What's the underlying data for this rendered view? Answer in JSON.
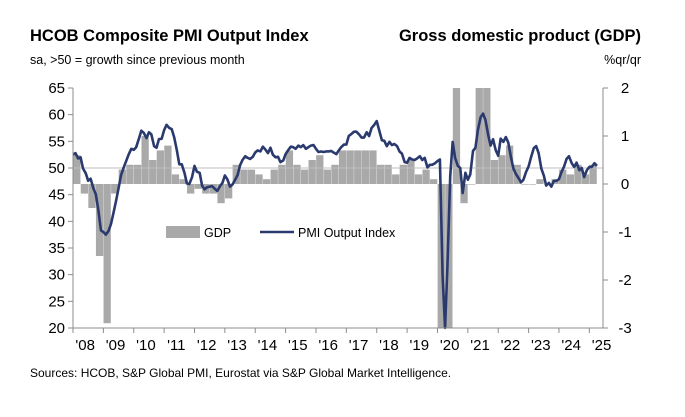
{
  "chart_data": {
    "type": "bar+line",
    "title": "HCOB Composite PMI Output Index",
    "subtitle": "sa, >50 = growth since previous month",
    "title_right": "Gross domestic product (GDP)",
    "subtitle_right": "%qr/qr",
    "source": "Sources: HCOB, S&P Global PMI, Eurostat via S&P Global Market Intelligence.",
    "x_tick_labels": [
      "'08",
      "'09",
      "'10",
      "'11",
      "'12",
      "'13",
      "'14",
      "'15",
      "'16",
      "'17",
      "'18",
      "'19",
      "'20",
      "'21",
      "'22",
      "'23",
      "'24",
      "'25"
    ],
    "x_range": [
      2008.0,
      2025.45
    ],
    "y_left": {
      "ticks": [
        65,
        60,
        55,
        50,
        45,
        40,
        35,
        30,
        25,
        20
      ],
      "range": [
        20,
        65
      ]
    },
    "y_right": {
      "ticks": [
        2,
        1,
        0,
        -1,
        -2,
        -3
      ],
      "range": [
        -3,
        2
      ]
    },
    "reference_line_left": 50,
    "legend": {
      "position": "center-left",
      "items": [
        "GDP",
        "PMI Output Index"
      ]
    },
    "colors": {
      "gdp_bars": "#a9a9a9",
      "pmi_line": "#2b3a6e",
      "axis": "#8c8c8c"
    },
    "series": [
      {
        "name": "GDP",
        "axis": "right",
        "kind": "bar",
        "points": [
          {
            "t": 2008.125,
            "v": 0.6
          },
          {
            "t": 2008.375,
            "v": -0.2
          },
          {
            "t": 2008.625,
            "v": -0.5
          },
          {
            "t": 2008.875,
            "v": -1.5
          },
          {
            "t": 2009.125,
            "v": -2.9
          },
          {
            "t": 2009.375,
            "v": -0.2
          },
          {
            "t": 2009.625,
            "v": 0.3
          },
          {
            "t": 2009.875,
            "v": 0.4
          },
          {
            "t": 2010.125,
            "v": 0.4
          },
          {
            "t": 2010.375,
            "v": 1.0
          },
          {
            "t": 2010.625,
            "v": 0.5
          },
          {
            "t": 2010.875,
            "v": 0.7
          },
          {
            "t": 2011.125,
            "v": 0.8
          },
          {
            "t": 2011.375,
            "v": 0.2
          },
          {
            "t": 2011.625,
            "v": 0.1
          },
          {
            "t": 2011.875,
            "v": -0.2
          },
          {
            "t": 2012.125,
            "v": -0.1
          },
          {
            "t": 2012.375,
            "v": -0.2
          },
          {
            "t": 2012.625,
            "v": -0.2
          },
          {
            "t": 2012.875,
            "v": -0.4
          },
          {
            "t": 2013.125,
            "v": -0.3
          },
          {
            "t": 2013.375,
            "v": 0.4
          },
          {
            "t": 2013.625,
            "v": 0.3
          },
          {
            "t": 2013.875,
            "v": 0.3
          },
          {
            "t": 2014.125,
            "v": 0.2
          },
          {
            "t": 2014.375,
            "v": 0.1
          },
          {
            "t": 2014.625,
            "v": 0.3
          },
          {
            "t": 2014.875,
            "v": 0.4
          },
          {
            "t": 2015.125,
            "v": 0.7
          },
          {
            "t": 2015.375,
            "v": 0.4
          },
          {
            "t": 2015.625,
            "v": 0.3
          },
          {
            "t": 2015.875,
            "v": 0.5
          },
          {
            "t": 2016.125,
            "v": 0.6
          },
          {
            "t": 2016.375,
            "v": 0.3
          },
          {
            "t": 2016.625,
            "v": 0.4
          },
          {
            "t": 2016.875,
            "v": 0.7
          },
          {
            "t": 2017.125,
            "v": 0.7
          },
          {
            "t": 2017.375,
            "v": 0.7
          },
          {
            "t": 2017.625,
            "v": 0.7
          },
          {
            "t": 2017.875,
            "v": 0.7
          },
          {
            "t": 2018.125,
            "v": 0.4
          },
          {
            "t": 2018.375,
            "v": 0.4
          },
          {
            "t": 2018.625,
            "v": 0.2
          },
          {
            "t": 2018.875,
            "v": 0.4
          },
          {
            "t": 2019.125,
            "v": 0.5
          },
          {
            "t": 2019.375,
            "v": 0.2
          },
          {
            "t": 2019.625,
            "v": 0.3
          },
          {
            "t": 2019.875,
            "v": 0.1
          },
          {
            "t": 2020.125,
            "v": -3.5
          },
          {
            "t": 2020.375,
            "v": -11.6
          },
          {
            "t": 2020.625,
            "v": 12.6
          },
          {
            "t": 2020.875,
            "v": -0.4
          },
          {
            "t": 2021.125,
            "v": 0.0
          },
          {
            "t": 2021.375,
            "v": 2.2
          },
          {
            "t": 2021.625,
            "v": 2.2
          },
          {
            "t": 2021.875,
            "v": 0.5
          },
          {
            "t": 2022.125,
            "v": 0.6
          },
          {
            "t": 2022.375,
            "v": 0.8
          },
          {
            "t": 2022.625,
            "v": 0.4
          },
          {
            "t": 2022.875,
            "v": 0.0
          },
          {
            "t": 2023.125,
            "v": 0.0
          },
          {
            "t": 2023.375,
            "v": 0.1
          },
          {
            "t": 2023.625,
            "v": 0.0
          },
          {
            "t": 2023.875,
            "v": 0.1
          },
          {
            "t": 2024.125,
            "v": 0.3
          },
          {
            "t": 2024.375,
            "v": 0.2
          },
          {
            "t": 2024.625,
            "v": 0.4
          },
          {
            "t": 2024.875,
            "v": 0.2
          },
          {
            "t": 2025.125,
            "v": 0.4
          }
        ]
      },
      {
        "name": "PMI Output Index",
        "axis": "left",
        "kind": "line",
        "points": [
          [
            2008.0,
            52.5
          ],
          [
            2008.08,
            52.8
          ],
          [
            2008.17,
            51.8
          ],
          [
            2008.25,
            52.0
          ],
          [
            2008.33,
            49.9
          ],
          [
            2008.42,
            49.0
          ],
          [
            2008.5,
            47.6
          ],
          [
            2008.58,
            48.0
          ],
          [
            2008.67,
            46.2
          ],
          [
            2008.75,
            45.1
          ],
          [
            2008.83,
            42.3
          ],
          [
            2008.92,
            38.3
          ],
          [
            2009.0,
            38.0
          ],
          [
            2009.08,
            37.5
          ],
          [
            2009.17,
            38.2
          ],
          [
            2009.25,
            39.5
          ],
          [
            2009.33,
            41.5
          ],
          [
            2009.42,
            43.9
          ],
          [
            2009.5,
            46.2
          ],
          [
            2009.58,
            48.6
          ],
          [
            2009.67,
            50.1
          ],
          [
            2009.75,
            51.3
          ],
          [
            2009.83,
            52.5
          ],
          [
            2009.92,
            53.6
          ],
          [
            2010.0,
            53.4
          ],
          [
            2010.08,
            53.9
          ],
          [
            2010.17,
            55.5
          ],
          [
            2010.25,
            57.0
          ],
          [
            2010.33,
            56.6
          ],
          [
            2010.42,
            55.6
          ],
          [
            2010.5,
            56.7
          ],
          [
            2010.58,
            56.3
          ],
          [
            2010.67,
            54.1
          ],
          [
            2010.75,
            53.8
          ],
          [
            2010.83,
            55.4
          ],
          [
            2010.92,
            55.5
          ],
          [
            2011.0,
            57.1
          ],
          [
            2011.08,
            58.1
          ],
          [
            2011.17,
            57.5
          ],
          [
            2011.25,
            57.3
          ],
          [
            2011.33,
            55.8
          ],
          [
            2011.42,
            53.3
          ],
          [
            2011.5,
            50.7
          ],
          [
            2011.58,
            50.7
          ],
          [
            2011.67,
            49.1
          ],
          [
            2011.75,
            47.1
          ],
          [
            2011.83,
            47.0
          ],
          [
            2011.92,
            48.3
          ],
          [
            2012.0,
            50.4
          ],
          [
            2012.08,
            49.3
          ],
          [
            2012.17,
            49.1
          ],
          [
            2012.25,
            46.7
          ],
          [
            2012.33,
            46.0
          ],
          [
            2012.42,
            46.4
          ],
          [
            2012.5,
            46.5
          ],
          [
            2012.58,
            46.6
          ],
          [
            2012.67,
            46.1
          ],
          [
            2012.75,
            45.7
          ],
          [
            2012.83,
            46.5
          ],
          [
            2012.92,
            47.2
          ],
          [
            2013.0,
            48.6
          ],
          [
            2013.08,
            47.9
          ],
          [
            2013.17,
            46.5
          ],
          [
            2013.25,
            46.9
          ],
          [
            2013.33,
            47.7
          ],
          [
            2013.42,
            48.7
          ],
          [
            2013.5,
            50.5
          ],
          [
            2013.58,
            51.5
          ],
          [
            2013.67,
            52.2
          ],
          [
            2013.75,
            51.9
          ],
          [
            2013.83,
            51.7
          ],
          [
            2013.92,
            52.1
          ],
          [
            2014.0,
            52.9
          ],
          [
            2014.08,
            53.3
          ],
          [
            2014.17,
            53.1
          ],
          [
            2014.25,
            54.0
          ],
          [
            2014.33,
            53.5
          ],
          [
            2014.42,
            52.8
          ],
          [
            2014.5,
            53.8
          ],
          [
            2014.58,
            52.5
          ],
          [
            2014.67,
            52.0
          ],
          [
            2014.75,
            52.1
          ],
          [
            2014.83,
            51.1
          ],
          [
            2014.92,
            51.4
          ],
          [
            2015.0,
            52.6
          ],
          [
            2015.08,
            53.3
          ],
          [
            2015.17,
            54.0
          ],
          [
            2015.25,
            53.9
          ],
          [
            2015.33,
            53.6
          ],
          [
            2015.42,
            54.2
          ],
          [
            2015.5,
            53.9
          ],
          [
            2015.58,
            54.3
          ],
          [
            2015.67,
            53.6
          ],
          [
            2015.75,
            53.9
          ],
          [
            2015.83,
            54.2
          ],
          [
            2015.92,
            54.3
          ],
          [
            2016.0,
            53.6
          ],
          [
            2016.08,
            53.0
          ],
          [
            2016.17,
            53.1
          ],
          [
            2016.25,
            53.0
          ],
          [
            2016.33,
            53.1
          ],
          [
            2016.42,
            53.1
          ],
          [
            2016.5,
            53.2
          ],
          [
            2016.58,
            52.9
          ],
          [
            2016.67,
            52.6
          ],
          [
            2016.75,
            53.3
          ],
          [
            2016.83,
            53.9
          ],
          [
            2016.92,
            54.4
          ],
          [
            2017.0,
            54.4
          ],
          [
            2017.08,
            56.0
          ],
          [
            2017.17,
            56.4
          ],
          [
            2017.25,
            56.8
          ],
          [
            2017.33,
            56.8
          ],
          [
            2017.42,
            56.3
          ],
          [
            2017.5,
            55.7
          ],
          [
            2017.58,
            55.7
          ],
          [
            2017.67,
            56.7
          ],
          [
            2017.75,
            56.0
          ],
          [
            2017.83,
            57.5
          ],
          [
            2017.92,
            58.1
          ],
          [
            2018.0,
            58.8
          ],
          [
            2018.08,
            57.1
          ],
          [
            2018.17,
            55.2
          ],
          [
            2018.25,
            55.1
          ],
          [
            2018.33,
            54.1
          ],
          [
            2018.42,
            54.9
          ],
          [
            2018.5,
            54.3
          ],
          [
            2018.58,
            54.5
          ],
          [
            2018.67,
            54.1
          ],
          [
            2018.75,
            53.1
          ],
          [
            2018.83,
            52.7
          ],
          [
            2018.92,
            51.1
          ],
          [
            2019.0,
            51.0
          ],
          [
            2019.08,
            51.9
          ],
          [
            2019.17,
            51.6
          ],
          [
            2019.25,
            51.5
          ],
          [
            2019.33,
            51.8
          ],
          [
            2019.42,
            52.2
          ],
          [
            2019.5,
            51.5
          ],
          [
            2019.58,
            51.9
          ],
          [
            2019.67,
            50.1
          ],
          [
            2019.75,
            50.6
          ],
          [
            2019.83,
            50.6
          ],
          [
            2019.92,
            50.9
          ],
          [
            2020.0,
            51.3
          ],
          [
            2020.08,
            51.6
          ],
          [
            2020.17,
            29.7
          ],
          [
            2020.25,
            13.6
          ],
          [
            2020.33,
            31.9
          ],
          [
            2020.42,
            48.5
          ],
          [
            2020.5,
            54.9
          ],
          [
            2020.58,
            51.9
          ],
          [
            2020.67,
            50.4
          ],
          [
            2020.75,
            50.0
          ],
          [
            2020.83,
            45.3
          ],
          [
            2020.92,
            49.1
          ],
          [
            2021.0,
            47.8
          ],
          [
            2021.08,
            48.8
          ],
          [
            2021.17,
            53.2
          ],
          [
            2021.25,
            53.8
          ],
          [
            2021.33,
            57.1
          ],
          [
            2021.42,
            59.5
          ],
          [
            2021.5,
            60.2
          ],
          [
            2021.58,
            59.0
          ],
          [
            2021.67,
            56.2
          ],
          [
            2021.75,
            54.2
          ],
          [
            2021.83,
            55.4
          ],
          [
            2021.92,
            53.3
          ],
          [
            2022.0,
            52.3
          ],
          [
            2022.08,
            55.5
          ],
          [
            2022.17,
            54.9
          ],
          [
            2022.25,
            55.8
          ],
          [
            2022.33,
            54.8
          ],
          [
            2022.42,
            52.0
          ],
          [
            2022.5,
            49.9
          ],
          [
            2022.58,
            48.9
          ],
          [
            2022.67,
            48.1
          ],
          [
            2022.75,
            47.3
          ],
          [
            2022.83,
            47.8
          ],
          [
            2022.92,
            49.3
          ],
          [
            2023.0,
            50.3
          ],
          [
            2023.08,
            52.0
          ],
          [
            2023.17,
            53.7
          ],
          [
            2023.25,
            54.1
          ],
          [
            2023.33,
            52.8
          ],
          [
            2023.42,
            49.9
          ],
          [
            2023.5,
            48.6
          ],
          [
            2023.58,
            46.7
          ],
          [
            2023.67,
            47.2
          ],
          [
            2023.75,
            46.5
          ],
          [
            2023.83,
            47.6
          ],
          [
            2023.92,
            47.6
          ],
          [
            2024.0,
            47.9
          ],
          [
            2024.08,
            49.2
          ],
          [
            2024.17,
            50.3
          ],
          [
            2024.25,
            51.7
          ],
          [
            2024.33,
            52.2
          ],
          [
            2024.42,
            50.9
          ],
          [
            2024.5,
            50.2
          ],
          [
            2024.58,
            51.0
          ],
          [
            2024.67,
            49.6
          ],
          [
            2024.75,
            50.0
          ],
          [
            2024.83,
            48.3
          ],
          [
            2024.92,
            49.6
          ],
          [
            2025.0,
            50.2
          ],
          [
            2025.08,
            50.2
          ],
          [
            2025.17,
            50.9
          ],
          [
            2025.25,
            50.4
          ]
        ]
      }
    ]
  }
}
